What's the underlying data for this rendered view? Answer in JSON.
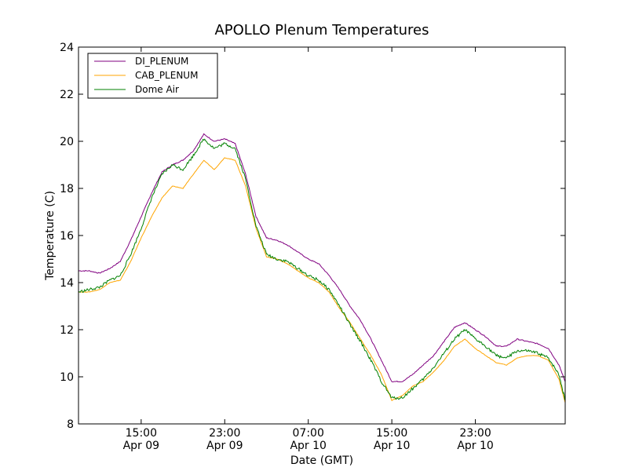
{
  "colors": {
    "DI_PLENUM": "#800080",
    "CAB_PLENUM": "#ffa500",
    "Dome Air": "#008000"
  },
  "chart_data": {
    "type": "line",
    "title": "APOLLO Plenum Temperatures",
    "xlabel": "Date (GMT)",
    "ylabel": "Temperature (C)",
    "xlim": [
      0,
      46.6
    ],
    "ylim": [
      8,
      24
    ],
    "x_unit": "hours since Apr 09 09:00 GMT",
    "yticks": [
      8,
      10,
      12,
      14,
      16,
      18,
      20,
      22,
      24
    ],
    "xticks": [
      {
        "x": 6,
        "time": "15:00",
        "date": "Apr 09"
      },
      {
        "x": 14,
        "time": "23:00",
        "date": "Apr 09"
      },
      {
        "x": 22,
        "time": "07:00",
        "date": "Apr 10"
      },
      {
        "x": 30,
        "time": "15:00",
        "date": "Apr 10"
      },
      {
        "x": 38,
        "time": "23:00",
        "date": "Apr 10"
      }
    ],
    "legend": {
      "position": "top-left",
      "entries": [
        "DI_PLENUM",
        "CAB_PLENUM",
        "Dome Air"
      ]
    },
    "grid": false,
    "series": [
      {
        "name": "DI_PLENUM",
        "x": [
          0,
          1,
          2,
          3,
          4,
          5,
          6,
          7,
          8,
          9,
          10,
          11,
          12,
          13,
          14,
          15,
          16,
          17,
          18,
          19,
          20,
          21,
          22,
          23,
          24,
          25,
          26,
          27,
          28,
          29,
          30,
          31,
          32,
          33,
          34,
          35,
          36,
          37,
          38,
          39,
          40,
          41,
          42,
          43,
          44,
          45,
          46,
          46.6
        ],
        "values": [
          14.5,
          14.5,
          14.4,
          14.6,
          14.9,
          15.8,
          16.8,
          17.8,
          18.7,
          19.0,
          19.2,
          19.6,
          20.3,
          20.0,
          20.1,
          19.9,
          18.6,
          16.8,
          15.9,
          15.8,
          15.6,
          15.3,
          15.0,
          14.8,
          14.3,
          13.7,
          13.0,
          12.4,
          11.6,
          10.7,
          9.8,
          9.8,
          10.1,
          10.5,
          10.9,
          11.5,
          12.1,
          12.3,
          12.0,
          11.7,
          11.3,
          11.3,
          11.6,
          11.5,
          11.4,
          11.2,
          10.5,
          9.8
        ]
      },
      {
        "name": "CAB_PLENUM",
        "x": [
          0,
          1,
          2,
          3,
          4,
          5,
          6,
          7,
          8,
          9,
          10,
          11,
          12,
          13,
          14,
          15,
          16,
          17,
          18,
          19,
          20,
          21,
          22,
          23,
          24,
          25,
          26,
          27,
          28,
          29,
          30,
          31,
          32,
          33,
          34,
          35,
          36,
          37,
          38,
          39,
          40,
          41,
          42,
          43,
          44,
          45,
          46,
          46.6
        ],
        "values": [
          13.6,
          13.6,
          13.7,
          14.0,
          14.1,
          14.9,
          15.9,
          16.8,
          17.6,
          18.1,
          18.0,
          18.6,
          19.2,
          18.8,
          19.3,
          19.2,
          18.1,
          16.3,
          15.1,
          15.0,
          14.8,
          14.5,
          14.2,
          14.0,
          13.6,
          12.9,
          12.3,
          11.6,
          10.9,
          10.1,
          9.0,
          9.2,
          9.6,
          9.8,
          10.2,
          10.7,
          11.3,
          11.6,
          11.2,
          10.9,
          10.6,
          10.5,
          10.8,
          10.9,
          10.9,
          10.7,
          9.9,
          8.9
        ]
      },
      {
        "name": "Dome Air",
        "x": [
          0,
          1,
          2,
          3,
          4,
          5,
          6,
          7,
          8,
          9,
          10,
          11,
          12,
          13,
          14,
          15,
          16,
          17,
          18,
          19,
          20,
          21,
          22,
          23,
          24,
          25,
          26,
          27,
          28,
          29,
          30,
          31,
          32,
          33,
          34,
          35,
          36,
          37,
          38,
          39,
          40,
          41,
          42,
          43,
          44,
          45,
          46,
          46.6
        ],
        "values": [
          13.6,
          13.7,
          13.8,
          14.1,
          14.3,
          15.2,
          16.3,
          17.6,
          18.6,
          19.0,
          18.8,
          19.4,
          20.1,
          19.7,
          19.9,
          19.7,
          18.4,
          16.4,
          15.2,
          15.0,
          14.9,
          14.6,
          14.3,
          14.1,
          13.7,
          13.0,
          12.2,
          11.5,
          10.7,
          9.8,
          9.1,
          9.1,
          9.5,
          9.9,
          10.4,
          11.0,
          11.6,
          12.0,
          11.6,
          11.3,
          10.9,
          10.8,
          11.1,
          11.1,
          11.0,
          10.8,
          10.1,
          9.0
        ]
      }
    ]
  }
}
